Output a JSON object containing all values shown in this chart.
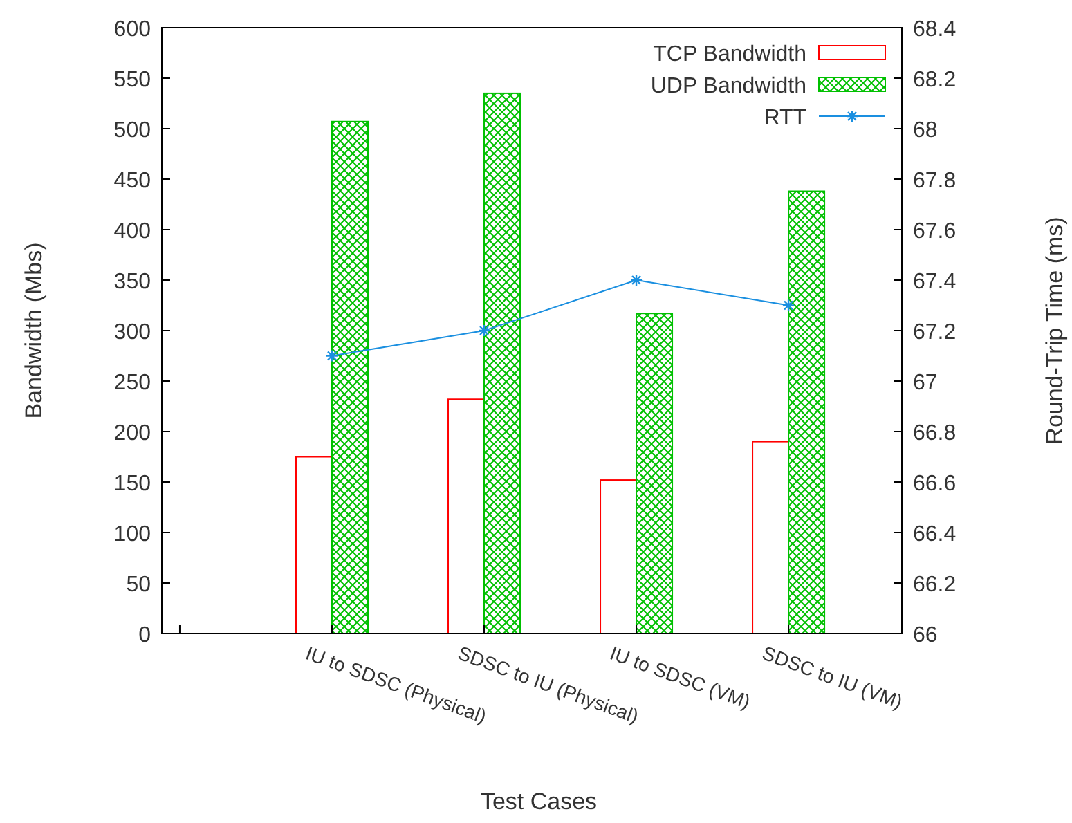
{
  "chart_data": {
    "type": "bar",
    "xlabel": "Test Cases",
    "ylabel": "Bandwidth (Mbs)",
    "y2label": "Round-Trip Time (ms)",
    "categories": [
      null,
      "IU to SDSC (Physical)",
      "SDSC to IU (Physical)",
      "IU to SDSC (VM)",
      "SDSC to IU (VM)"
    ],
    "series": [
      {
        "name": "TCP Bandwidth",
        "color": "#ff0000",
        "values": [
          null,
          175,
          232,
          152,
          190
        ]
      },
      {
        "name": "UDP Bandwidth",
        "color": "#00c000",
        "values": [
          null,
          507,
          535,
          317,
          438
        ]
      },
      {
        "name": "RTT",
        "type": "line",
        "axis": "y2",
        "color": "#1a8fe0",
        "marker": "cross",
        "line_style": "solid",
        "values": [
          null,
          67.1,
          67.2,
          67.4,
          67.3
        ]
      }
    ],
    "ylim": [
      0,
      600
    ],
    "yticks": [
      0,
      50,
      100,
      150,
      200,
      250,
      300,
      350,
      400,
      450,
      500,
      550,
      600
    ],
    "y2lim": [
      66,
      68.4
    ],
    "y2ticks": [
      66,
      66.2,
      66.4,
      66.6,
      66.8,
      67,
      67.2,
      67.4,
      67.6,
      67.8,
      68,
      68.2,
      68.4
    ],
    "grid": false,
    "legend": "top right"
  }
}
